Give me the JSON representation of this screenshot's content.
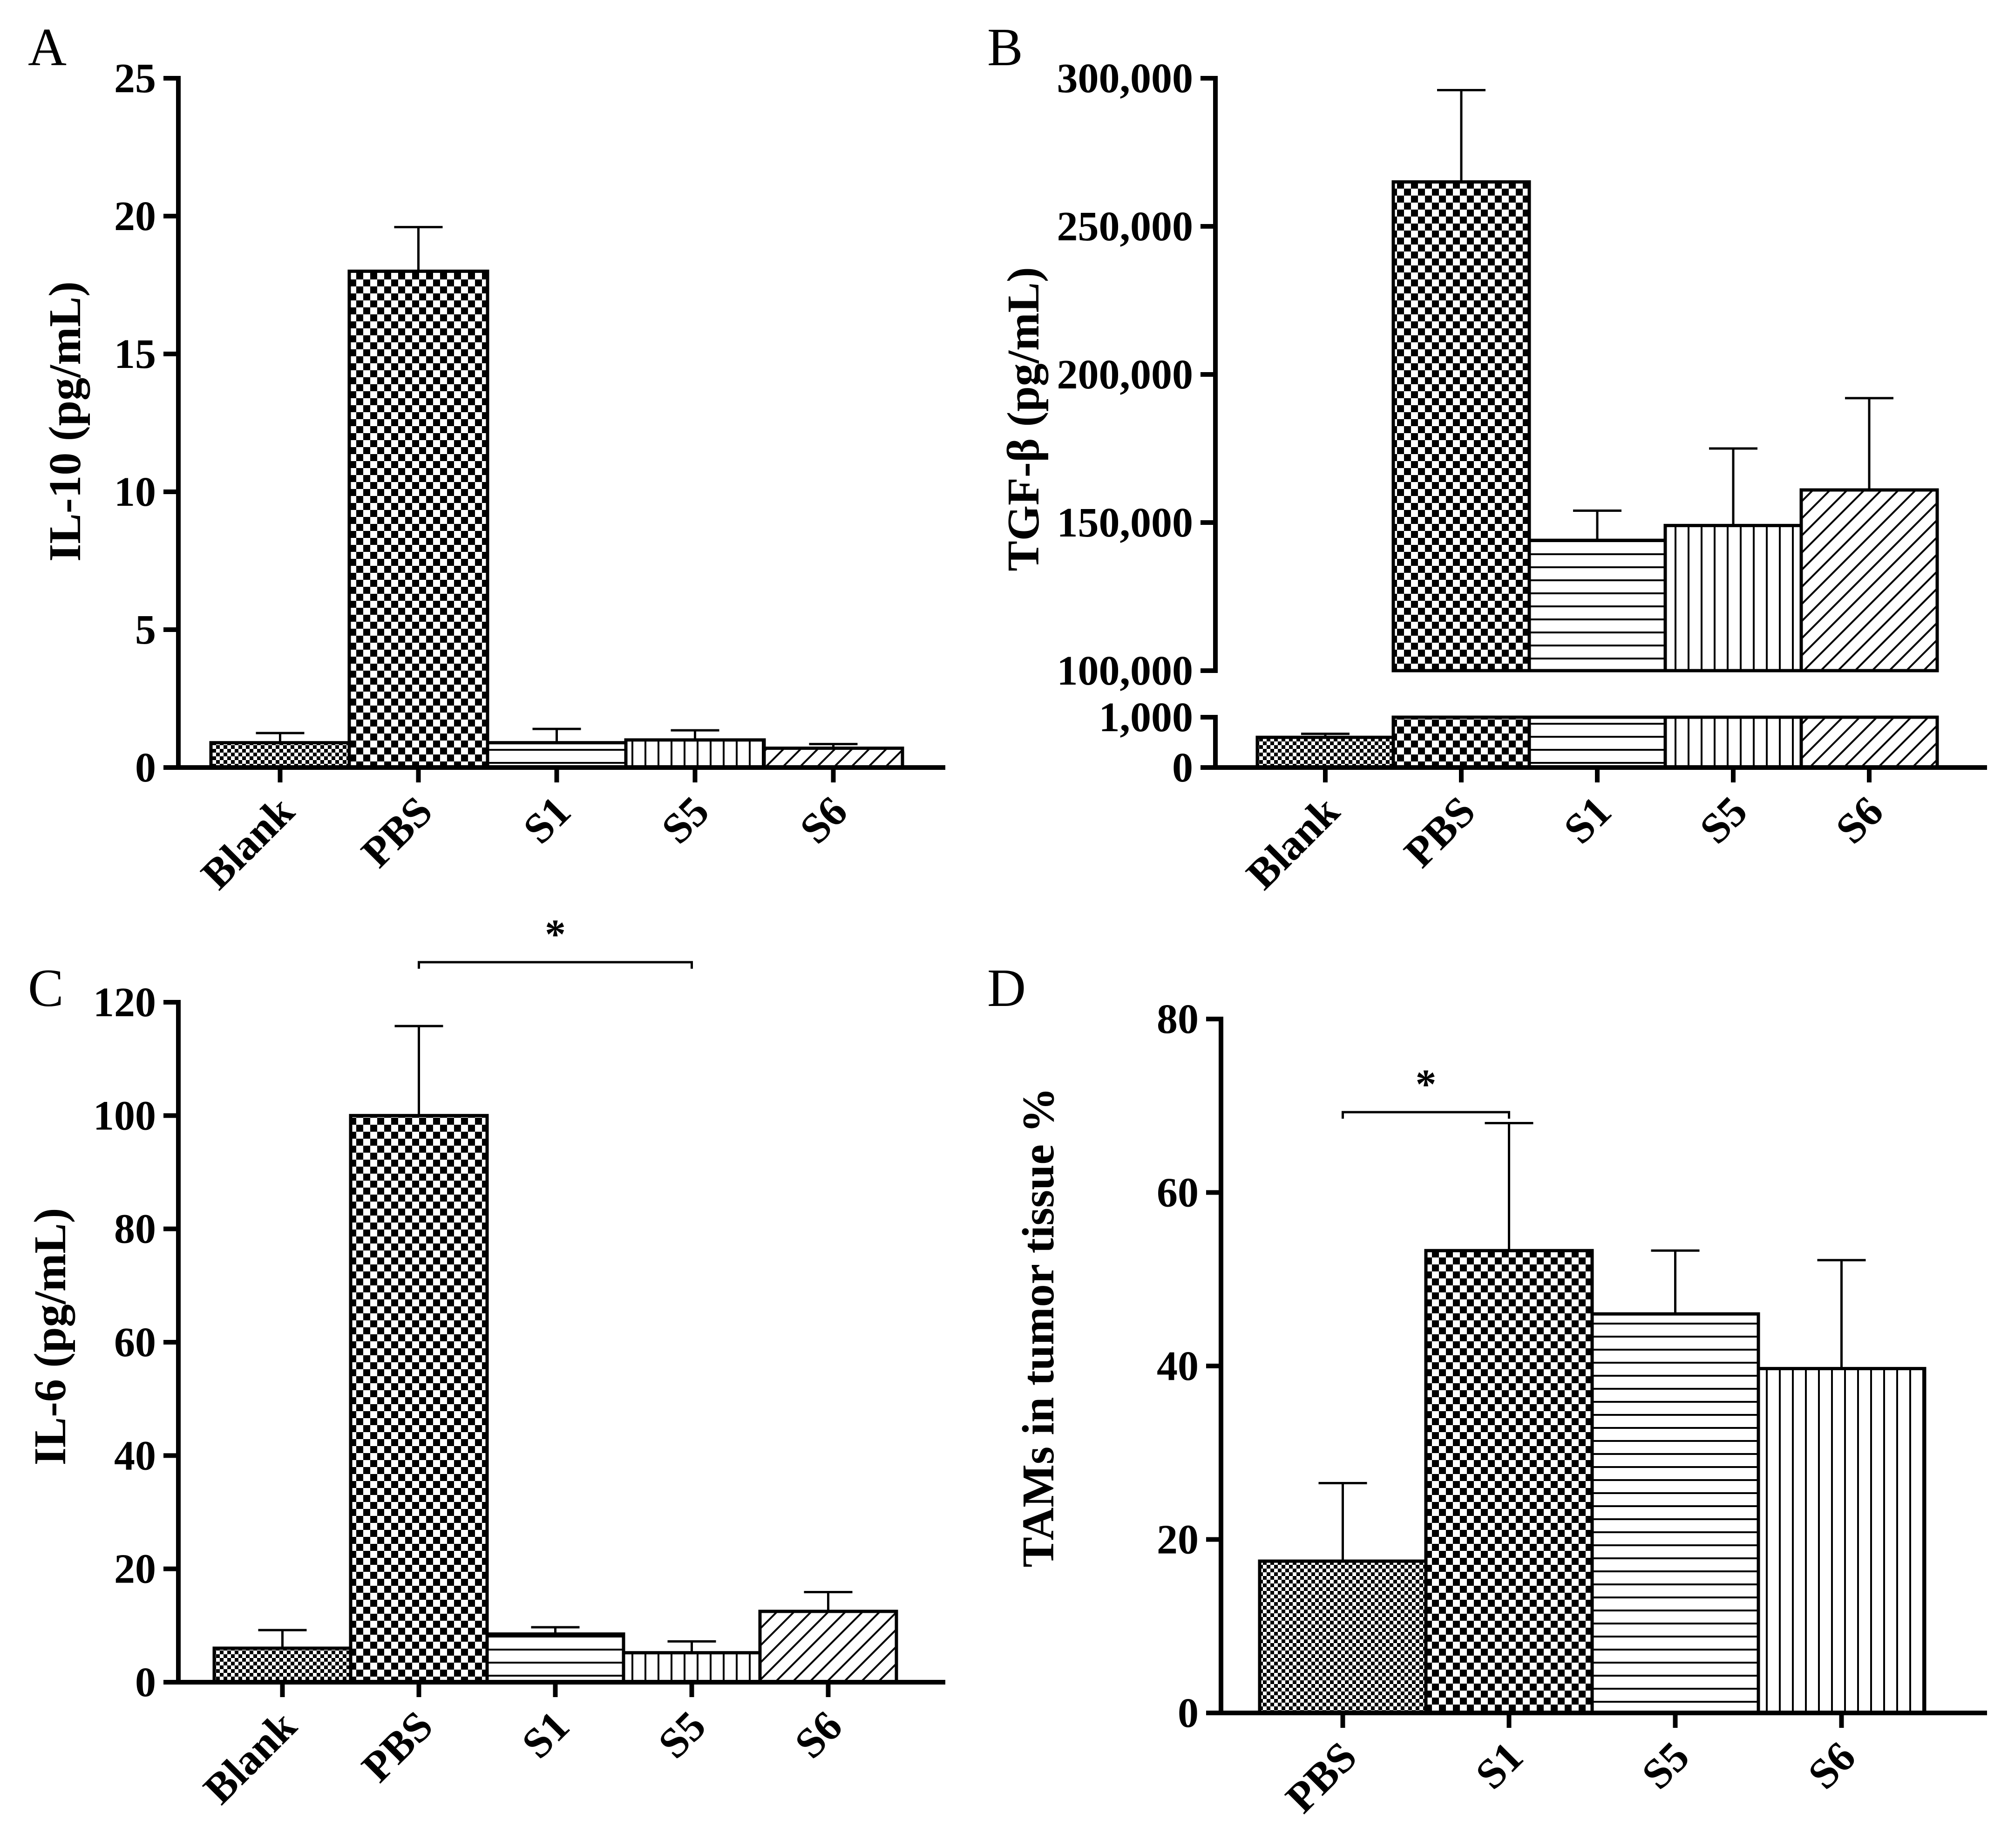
{
  "figure": {
    "panels": [
      "A",
      "B",
      "C",
      "D"
    ]
  },
  "chart_data": [
    {
      "panel": "A",
      "type": "bar",
      "ylabel": "IL-10 (pg/mL)",
      "ylim": [
        0,
        25
      ],
      "yticks": [
        0,
        5,
        10,
        15,
        20,
        25
      ],
      "ytick_labels": [
        "0",
        "5",
        "10",
        "15",
        "20",
        "25"
      ],
      "categories": [
        "Blank",
        "PBS",
        "S1",
        "S5",
        "S6"
      ],
      "values": [
        0.9,
        18.0,
        0.9,
        1.0,
        0.7
      ],
      "errors": [
        0.35,
        1.6,
        0.5,
        0.35,
        0.15
      ],
      "patterns": [
        "fine-check",
        "check",
        "hlines",
        "vlines",
        "diag"
      ],
      "significance": []
    },
    {
      "panel": "B",
      "type": "bar",
      "ylabel": "TGF-β (pg/mL)",
      "axis_break": true,
      "lower_segment": {
        "ylim": [
          0,
          1000
        ],
        "yticks": [
          0,
          1000
        ],
        "ytick_labels": [
          "0",
          "1,000"
        ]
      },
      "upper_segment": {
        "ylim": [
          100000,
          300000
        ],
        "yticks": [
          100000,
          150000,
          200000,
          250000,
          300000
        ],
        "ytick_labels": [
          "100,000",
          "150,000",
          "200,000",
          "250,000",
          "300,000"
        ]
      },
      "categories": [
        "Blank",
        "PBS",
        "S1",
        "S5",
        "S6"
      ],
      "values": [
        600,
        265000,
        144000,
        149000,
        161000
      ],
      "errors": [
        70,
        31000,
        10000,
        26000,
        31000
      ],
      "patterns": [
        "fine-check",
        "check",
        "hlines",
        "vlines",
        "diag"
      ],
      "significance": []
    },
    {
      "panel": "C",
      "type": "bar",
      "ylabel": "IL-6 (pg/mL)",
      "ylim": [
        0,
        120
      ],
      "yticks": [
        0,
        20,
        40,
        60,
        80,
        100,
        120
      ],
      "ytick_labels": [
        "0",
        "20",
        "40",
        "60",
        "80",
        "100",
        "120"
      ],
      "categories": [
        "Blank",
        "PBS",
        "S1",
        "S5",
        "S6"
      ],
      "values": [
        6,
        100,
        8.5,
        5.2,
        12.5
      ],
      "errors": [
        3.2,
        15.8,
        1.2,
        2.0,
        3.4
      ],
      "patterns": [
        "fine-check",
        "check",
        "hlines",
        "vlines",
        "diag"
      ],
      "significance": [
        {
          "from": "PBS",
          "to": "S5",
          "label": "*"
        }
      ]
    },
    {
      "panel": "D",
      "type": "bar",
      "ylabel": "TAMs in tumor tissue %",
      "ylim": [
        0,
        80
      ],
      "yticks": [
        0,
        20,
        40,
        60,
        80
      ],
      "ytick_labels": [
        "0",
        "20",
        "40",
        "60",
        "80"
      ],
      "categories": [
        "PBS",
        "S1",
        "S5",
        "S6"
      ],
      "values": [
        17.5,
        53.3,
        46,
        39.7
      ],
      "errors": [
        9,
        14.7,
        7.3,
        12.5
      ],
      "patterns": [
        "fine-check",
        "check",
        "hlines",
        "vlines"
      ],
      "significance": [
        {
          "from": "PBS",
          "to": "S1",
          "label": "*"
        }
      ]
    }
  ]
}
